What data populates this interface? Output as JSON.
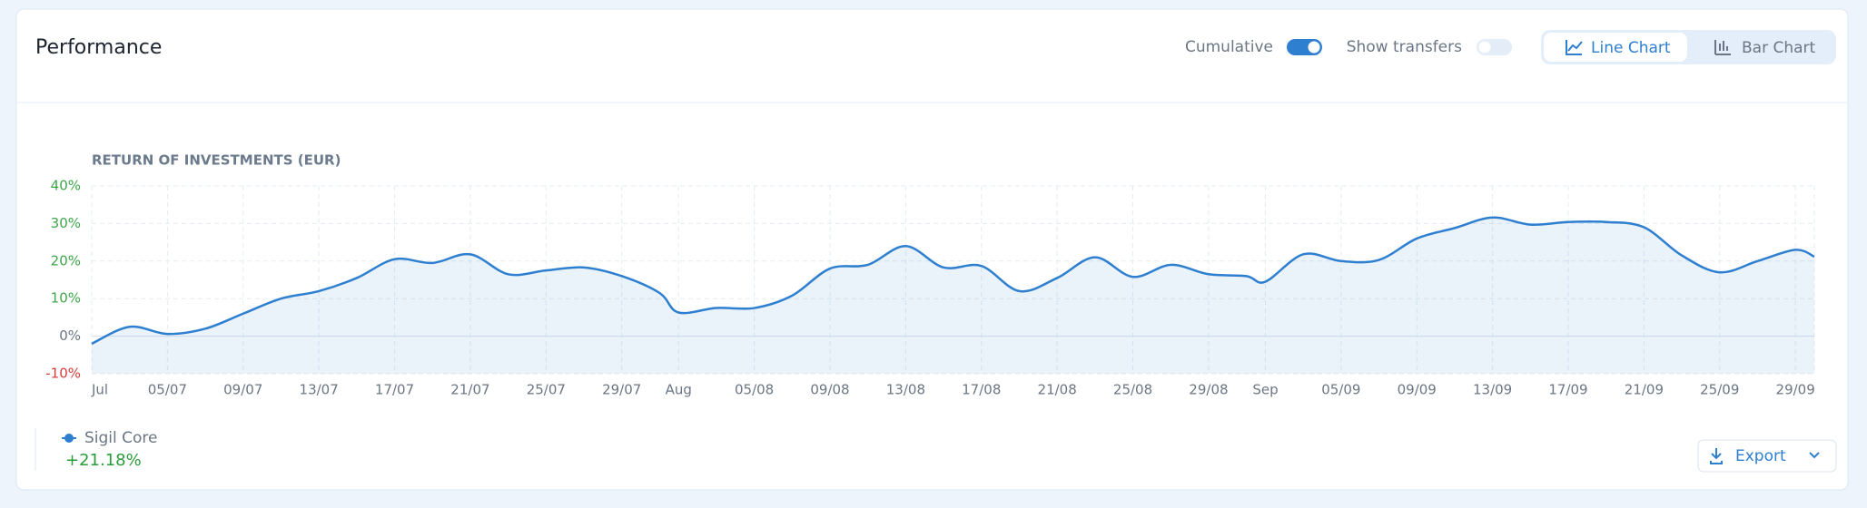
{
  "header": {
    "title": "Performance"
  },
  "controls": {
    "toggles": [
      {
        "label": "Cumulative",
        "checked": true
      },
      {
        "label": "Show transfers",
        "checked": false
      }
    ],
    "view": [
      {
        "label": "Line Chart",
        "active": true
      },
      {
        "label": "Bar Chart",
        "active": false
      }
    ]
  },
  "chart_data": {
    "type": "line",
    "title": "RETURN OF INVESTMENTS (EUR)",
    "x": [
      "01/07",
      "03/07",
      "05/07",
      "07/07",
      "09/07",
      "11/07",
      "13/07",
      "15/07",
      "17/07",
      "19/07",
      "21/07",
      "23/07",
      "25/07",
      "27/07",
      "29/07",
      "31/07",
      "01/08",
      "03/08",
      "05/08",
      "07/08",
      "09/08",
      "11/08",
      "13/08",
      "15/08",
      "17/08",
      "19/08",
      "21/08",
      "23/08",
      "25/08",
      "27/08",
      "29/08",
      "31/08",
      "01/09",
      "03/09",
      "05/09",
      "07/09",
      "09/09",
      "11/09",
      "13/09",
      "15/09",
      "17/09",
      "19/09",
      "21/09",
      "23/09",
      "25/09",
      "27/09",
      "29/09",
      "30/09"
    ],
    "series": [
      {
        "name": "Sigil Core",
        "color": "#2e7fd0",
        "values": [
          -2,
          2.5,
          0.6,
          2,
          6,
          10,
          12,
          15.5,
          20.5,
          19.5,
          21.8,
          16.5,
          17.5,
          18.3,
          16,
          11.5,
          6.3,
          7.5,
          7.5,
          10.8,
          18,
          19,
          24,
          18.3,
          18.7,
          12,
          15.5,
          21,
          15.8,
          19,
          16.5,
          16,
          14.5,
          21.8,
          20,
          20.3,
          26,
          28.8,
          31.6,
          29.7,
          30.4,
          30.4,
          29,
          21.5,
          17,
          20,
          23,
          21.2
        ]
      }
    ],
    "xlim": [
      "01/07",
      "30/09"
    ],
    "xticks": [
      {
        "value": "01/07",
        "label": "Jul"
      },
      "05/07",
      "09/07",
      "13/07",
      "17/07",
      "21/07",
      "25/07",
      "29/07",
      {
        "value": "01/08",
        "label": "Aug"
      },
      "05/08",
      "09/08",
      "13/08",
      "17/08",
      "21/08",
      "25/08",
      "29/08",
      {
        "value": "01/09",
        "label": "Sep"
      },
      "05/09",
      "09/09",
      "13/09",
      "17/09",
      "21/09",
      "25/09",
      "29/09"
    ],
    "ylim": [
      -10,
      40
    ],
    "yticks": [
      {
        "value": -10,
        "label": "-10%"
      },
      {
        "value": 0,
        "label": "0%"
      },
      {
        "value": 10,
        "label": "10%"
      },
      {
        "value": 20,
        "label": "20%"
      },
      {
        "value": 30,
        "label": "30%"
      },
      {
        "value": 40,
        "label": "40%"
      }
    ],
    "grid": true
  },
  "legend": {
    "value": "+21.18%"
  },
  "export": {
    "label": "Export"
  }
}
